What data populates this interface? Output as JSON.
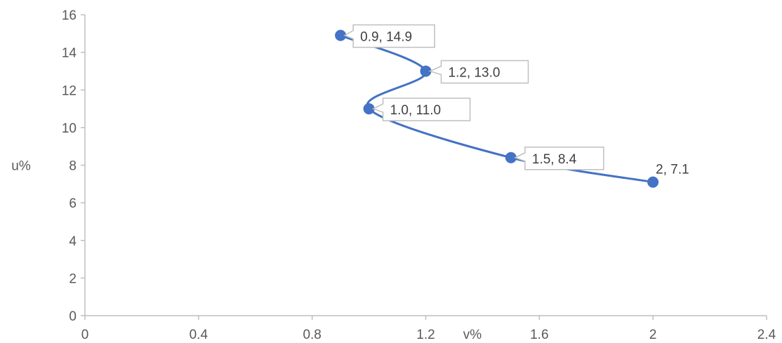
{
  "chart_data": {
    "type": "scatter",
    "xlabel": "v%",
    "ylabel": "u%",
    "xlim": [
      0,
      2.4
    ],
    "ylim": [
      0,
      16
    ],
    "x_ticks": [
      "0",
      "0.4",
      "0.8",
      "1.2",
      "1.6",
      "2",
      "2.4"
    ],
    "y_ticks": [
      "0",
      "2",
      "4",
      "6",
      "8",
      "10",
      "12",
      "14",
      "16"
    ],
    "grid": false,
    "smoothed_line": true,
    "series": [
      {
        "color": "#4472C4",
        "points": [
          {
            "x": 0.9,
            "y": 14.9,
            "label": "0.9, 14.9"
          },
          {
            "x": 1.2,
            "y": 13.0,
            "label": "1.2, 13.0"
          },
          {
            "x": 1.0,
            "y": 11.0,
            "label": "1.0, 11.0"
          },
          {
            "x": 1.5,
            "y": 8.4,
            "label": "1.5, 8.4"
          },
          {
            "x": 2,
            "y": 7.1,
            "label": "2, 7.1"
          }
        ]
      }
    ]
  }
}
